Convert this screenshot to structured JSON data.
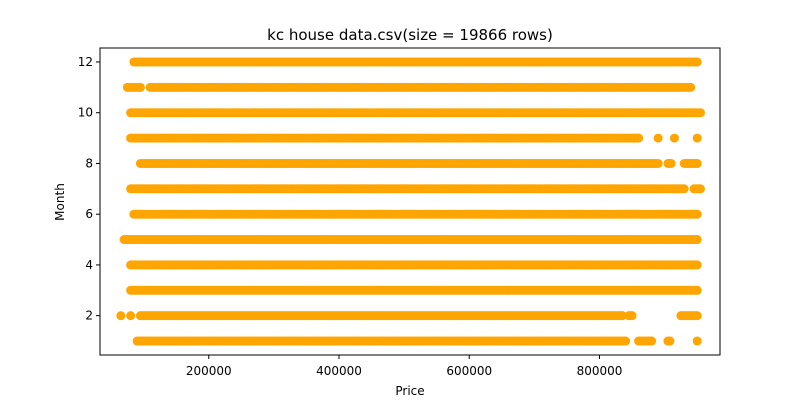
{
  "chart_data": {
    "type": "scatter",
    "title": "kc house data.csv(size = 19866 rows)",
    "xlabel": "Price",
    "ylabel": "Month",
    "xlim": [
      33000,
      985000
    ],
    "ylim": [
      0.45,
      12.55
    ],
    "x_ticks": [
      200000,
      400000,
      600000,
      800000
    ],
    "x_tick_labels": [
      "200000",
      "400000",
      "600000",
      "800000"
    ],
    "y_ticks": [
      2,
      4,
      6,
      8,
      10,
      12
    ],
    "y_tick_labels": [
      "2",
      "4",
      "6",
      "8",
      "10",
      "12"
    ],
    "grid": false,
    "legend": "none",
    "marker_color": "#FFA500",
    "series": [
      {
        "rows": [
          {
            "y": 1,
            "x": [
              [
                90000,
                840000
              ],
              [
                860000,
                880000
              ],
              [
                905000,
                908000
              ],
              [
                950000,
                950000
              ]
            ]
          },
          {
            "y": 2,
            "x": [
              [
                65000,
                65000
              ],
              [
                80000,
                80000
              ],
              [
                95000,
                835000
              ],
              [
                845000,
                850000
              ],
              [
                925000,
                950000
              ]
            ]
          },
          {
            "y": 3,
            "x": [
              [
                80000,
                950000
              ]
            ]
          },
          {
            "y": 4,
            "x": [
              [
                80000,
                950000
              ]
            ]
          },
          {
            "y": 5,
            "x": [
              [
                70000,
                950000
              ]
            ]
          },
          {
            "y": 6,
            "x": [
              [
                85000,
                950000
              ]
            ]
          },
          {
            "y": 7,
            "x": [
              [
                80000,
                930000
              ],
              [
                945000,
                955000
              ]
            ]
          },
          {
            "y": 8,
            "x": [
              [
                95000,
                890000
              ],
              [
                905000,
                910000
              ],
              [
                930000,
                950000
              ]
            ]
          },
          {
            "y": 9,
            "x": [
              [
                80000,
                860000
              ],
              [
                890000,
                890000
              ],
              [
                915000,
                915000
              ],
              [
                950000,
                950000
              ]
            ]
          },
          {
            "y": 10,
            "x": [
              [
                80000,
                955000
              ]
            ]
          },
          {
            "y": 11,
            "x": [
              [
                75000,
                95000
              ],
              [
                110000,
                940000
              ]
            ]
          },
          {
            "y": 12,
            "x": [
              [
                85000,
                950000
              ]
            ]
          }
        ]
      }
    ]
  }
}
